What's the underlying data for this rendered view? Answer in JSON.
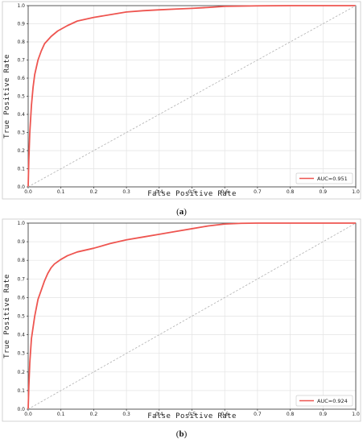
{
  "chart_data": [
    {
      "type": "line",
      "caption_open": "(",
      "caption_letter": "a",
      "caption_close": ")",
      "xlabel": "False Positive Rate",
      "ylabel": "True Positive Rate",
      "xlim": [
        0.0,
        1.0
      ],
      "ylim": [
        0.0,
        1.0
      ],
      "xticks": [
        "0.0",
        "0.1",
        "0.2",
        "0.3",
        "0.4",
        "0.5",
        "0.6",
        "0.7",
        "0.8",
        "0.9",
        "1.0"
      ],
      "yticks": [
        "0.0",
        "0.1",
        "0.2",
        "0.3",
        "0.4",
        "0.5",
        "0.6",
        "0.7",
        "0.8",
        "0.9",
        "1.0"
      ],
      "grid": true,
      "legend_position": "lower-right",
      "series": [
        {
          "name": "AUC=0.951",
          "color": "#ee5550",
          "x": [
            0.0,
            0.002,
            0.005,
            0.01,
            0.015,
            0.02,
            0.03,
            0.04,
            0.05,
            0.06,
            0.07,
            0.08,
            0.09,
            0.1,
            0.12,
            0.15,
            0.2,
            0.25,
            0.3,
            0.35,
            0.4,
            0.45,
            0.5,
            0.55,
            0.6,
            0.7,
            0.8,
            0.9,
            1.0
          ],
          "y": [
            0.0,
            0.15,
            0.3,
            0.45,
            0.55,
            0.62,
            0.7,
            0.75,
            0.79,
            0.81,
            0.83,
            0.845,
            0.86,
            0.87,
            0.89,
            0.915,
            0.935,
            0.95,
            0.965,
            0.972,
            0.977,
            0.981,
            0.985,
            0.99,
            0.996,
            0.999,
            1.0,
            1.0,
            1.0
          ]
        },
        {
          "name": "",
          "color": "#b0b0b0",
          "dashed": true,
          "x": [
            0.0,
            1.0
          ],
          "y": [
            0.0,
            1.0
          ]
        }
      ]
    },
    {
      "type": "line",
      "caption_open": "(",
      "caption_letter": "b",
      "caption_close": ")",
      "xlabel": "False Positive Rate",
      "ylabel": "True Positive Rate",
      "xlim": [
        0.0,
        1.0
      ],
      "ylim": [
        0.0,
        1.0
      ],
      "xticks": [
        "0.0",
        "0.1",
        "0.2",
        "0.3",
        "0.4",
        "0.5",
        "0.6",
        "0.7",
        "0.8",
        "0.9",
        "1.0"
      ],
      "yticks": [
        "0.0",
        "0.1",
        "0.2",
        "0.3",
        "0.4",
        "0.5",
        "0.6",
        "0.7",
        "0.8",
        "0.9",
        "1.0"
      ],
      "grid": true,
      "legend_position": "lower-right",
      "series": [
        {
          "name": "AUC=0.924",
          "color": "#ee5550",
          "x": [
            0.0,
            0.002,
            0.005,
            0.01,
            0.02,
            0.03,
            0.04,
            0.05,
            0.06,
            0.07,
            0.08,
            0.1,
            0.12,
            0.15,
            0.2,
            0.25,
            0.3,
            0.35,
            0.4,
            0.45,
            0.5,
            0.55,
            0.6,
            0.65,
            0.7,
            0.8,
            0.9,
            1.0
          ],
          "y": [
            0.0,
            0.12,
            0.25,
            0.38,
            0.5,
            0.59,
            0.64,
            0.69,
            0.73,
            0.76,
            0.78,
            0.805,
            0.825,
            0.845,
            0.865,
            0.89,
            0.91,
            0.925,
            0.94,
            0.955,
            0.97,
            0.985,
            0.995,
            0.999,
            1.0,
            1.0,
            1.0,
            1.0
          ]
        },
        {
          "name": "",
          "color": "#b0b0b0",
          "dashed": true,
          "x": [
            0.0,
            1.0
          ],
          "y": [
            0.0,
            1.0
          ]
        }
      ]
    }
  ]
}
